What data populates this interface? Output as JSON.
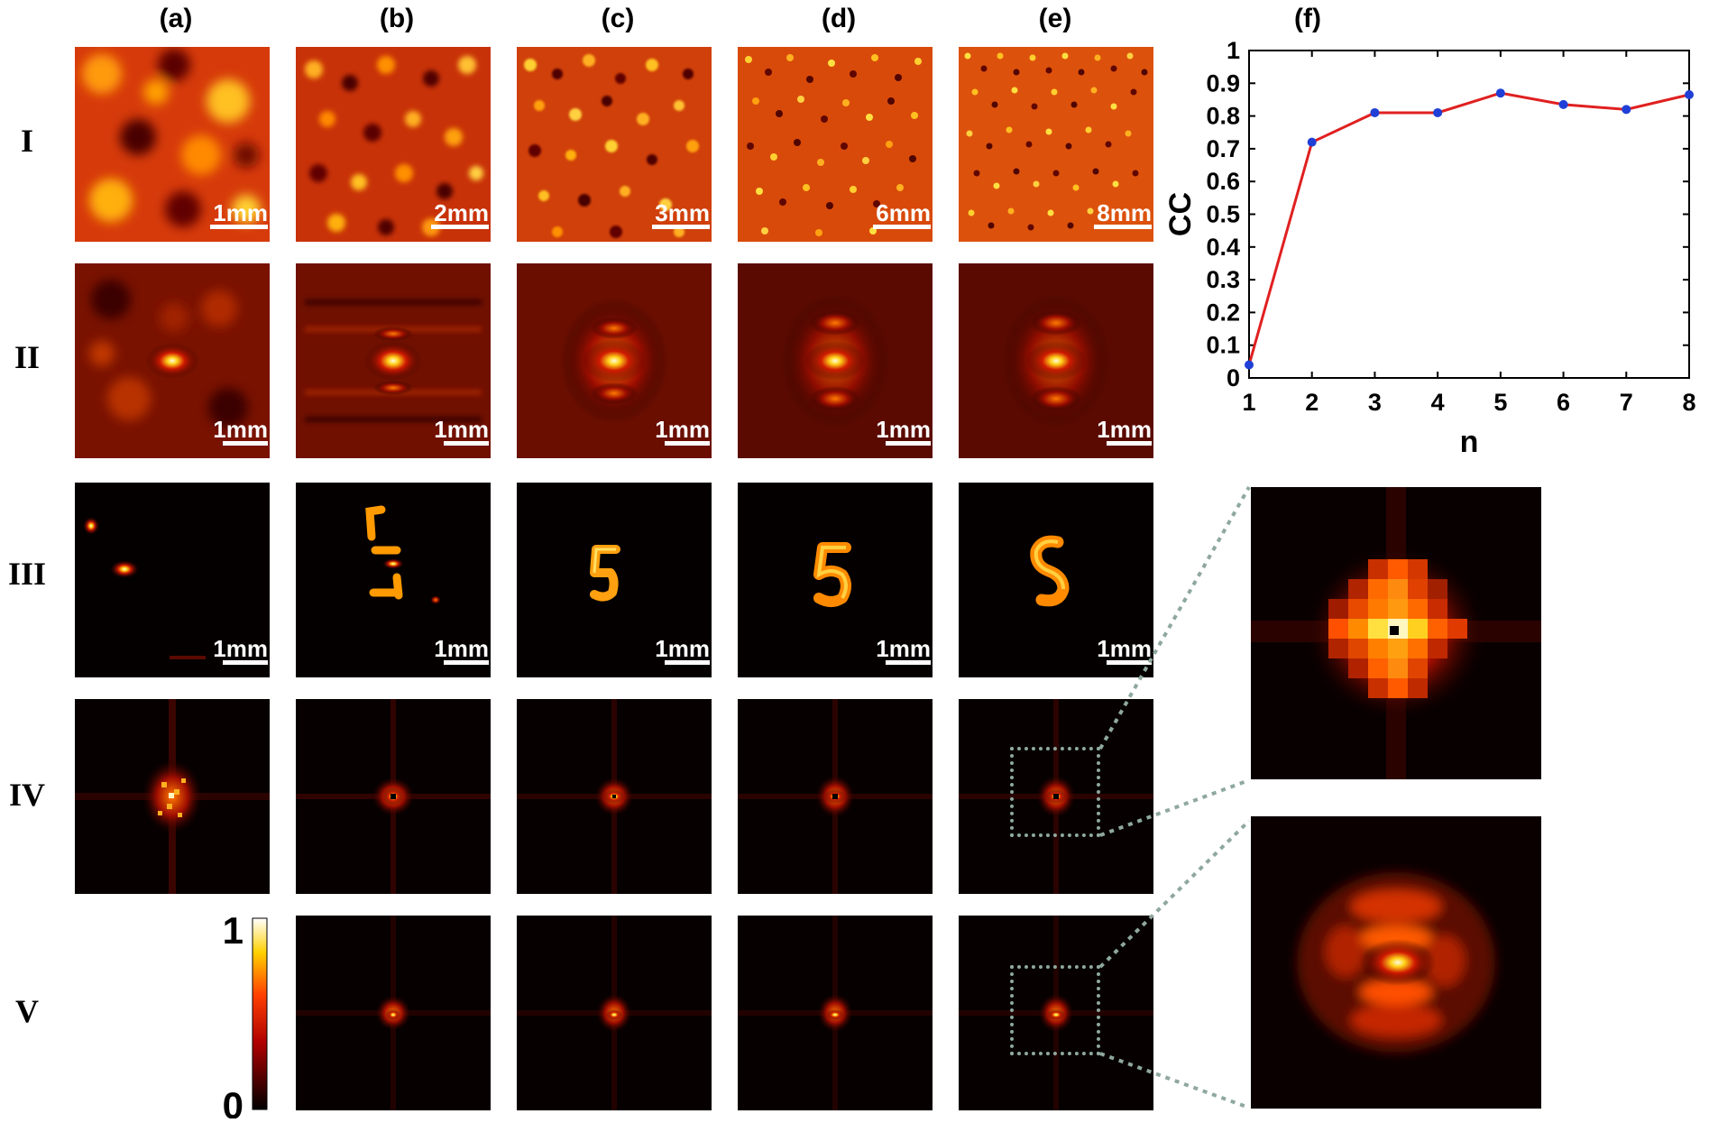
{
  "column_labels": [
    "(a)",
    "(b)",
    "(c)",
    "(d)",
    "(e)",
    "(f)"
  ],
  "row_labels": [
    "I",
    "II",
    "III",
    "IV",
    "V"
  ],
  "scale_bars": {
    "row1": [
      "1mm",
      "2mm",
      "3mm",
      "6mm",
      "8mm"
    ],
    "row2": [
      "1mm",
      "1mm",
      "1mm",
      "1mm",
      "1mm"
    ],
    "row3": [
      "1mm",
      "1mm",
      "1mm",
      "1mm",
      "1mm"
    ]
  },
  "colorbar": {
    "max_label": "1",
    "min_label": "0",
    "colormap": "hot"
  },
  "colors": {
    "line": "#e02020",
    "marker": "#1f3fd6",
    "dash": "#8fa89e"
  },
  "chart_data": {
    "type": "line",
    "xlabel": "n",
    "ylabel": "CC",
    "x": [
      1,
      2,
      3,
      4,
      5,
      6,
      7,
      8
    ],
    "series": [
      {
        "values": [
          0.04,
          0.72,
          0.81,
          0.81,
          0.87,
          0.835,
          0.82,
          0.865
        ]
      }
    ],
    "xlim": [
      1,
      8
    ],
    "ylim": [
      0,
      1
    ],
    "xticks": [
      "1",
      "2",
      "3",
      "4",
      "5",
      "6",
      "7",
      "8"
    ],
    "yticks": [
      "0",
      "0.1",
      "0.2",
      "0.3",
      "0.4",
      "0.5",
      "0.6",
      "0.7",
      "0.8",
      "0.9",
      "1"
    ],
    "grid": false
  }
}
